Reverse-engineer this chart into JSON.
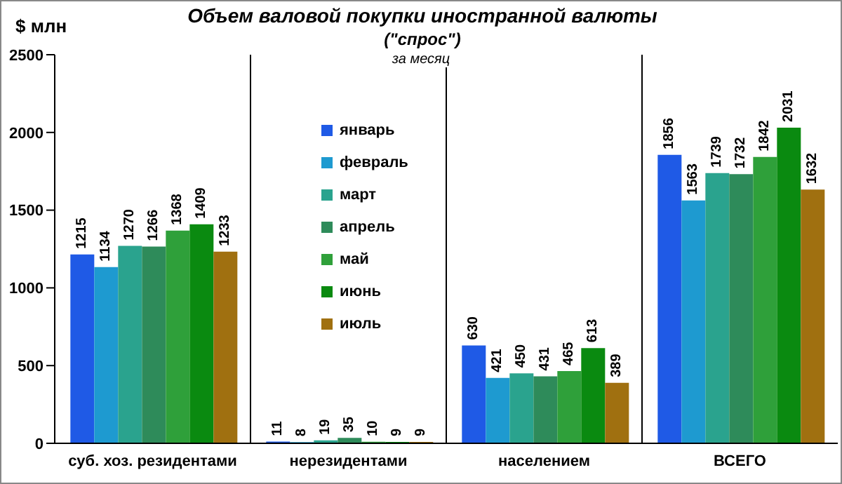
{
  "chart_data": {
    "type": "bar",
    "title": "Объем валовой покупки иностранной валюты",
    "subtitle": "(\"спрос\")",
    "annotations": [
      "за месяц"
    ],
    "ylabel": "$ млн",
    "categories": [
      "суб. хоз. резидентами",
      "нерезидентами",
      "населением",
      "ВСЕГО"
    ],
    "series": [
      {
        "name": "январь",
        "color": "#1f5ae6",
        "values": [
          1215,
          11,
          630,
          1856
        ]
      },
      {
        "name": "февраль",
        "color": "#1e9ad0",
        "values": [
          1134,
          8,
          421,
          1563
        ]
      },
      {
        "name": "март",
        "color": "#2aa38e",
        "values": [
          1270,
          19,
          450,
          1739
        ]
      },
      {
        "name": "апрель",
        "color": "#2e8b5a",
        "values": [
          1266,
          35,
          431,
          1732
        ]
      },
      {
        "name": "май",
        "color": "#2fa03a",
        "values": [
          1368,
          10,
          465,
          1842
        ]
      },
      {
        "name": "июнь",
        "color": "#0a8a10",
        "values": [
          1409,
          9,
          613,
          2031
        ]
      },
      {
        "name": "июль",
        "color": "#a07010",
        "values": [
          1233,
          9,
          389,
          1632
        ]
      }
    ],
    "ylim": [
      0,
      2500
    ],
    "yticks": [
      0,
      500,
      1000,
      1500,
      2000,
      2500
    ],
    "grid": "x",
    "legend": "top",
    "data_labels": true
  }
}
